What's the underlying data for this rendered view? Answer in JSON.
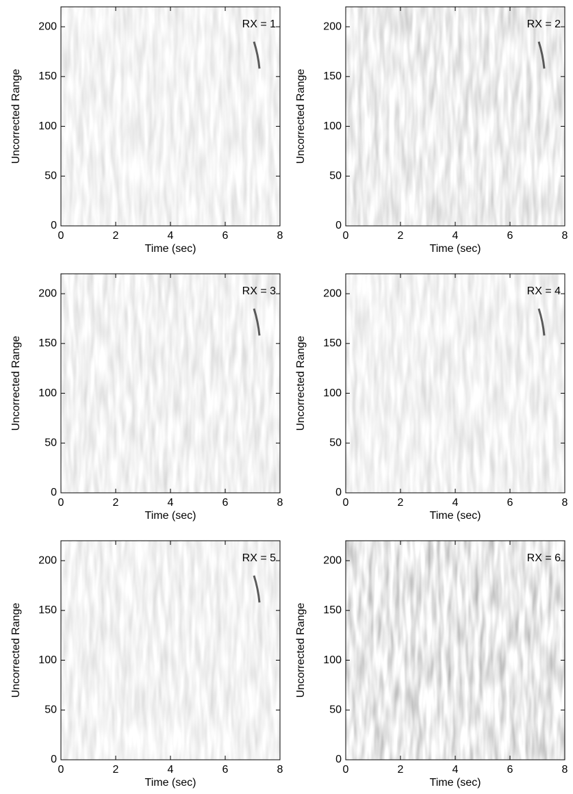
{
  "chart_data": [
    {
      "type": "heatmap",
      "label": "RX = 1",
      "xlabel": "Time (sec)",
      "ylabel": "Uncorrected Range",
      "xlim": [
        0,
        8
      ],
      "ylim": [
        0,
        220
      ],
      "xticks": [
        0,
        2,
        4,
        6,
        8
      ],
      "yticks": [
        0,
        50,
        100,
        150,
        200
      ]
    },
    {
      "type": "heatmap",
      "label": "RX = 2",
      "xlabel": "Time (sec)",
      "ylabel": "Uncorrected Range",
      "xlim": [
        0,
        8
      ],
      "ylim": [
        0,
        220
      ],
      "xticks": [
        0,
        2,
        4,
        6,
        8
      ],
      "yticks": [
        0,
        50,
        100,
        150,
        200
      ]
    },
    {
      "type": "heatmap",
      "label": "RX = 3",
      "xlabel": "Time (sec)",
      "ylabel": "Uncorrected Range",
      "xlim": [
        0,
        8
      ],
      "ylim": [
        0,
        220
      ],
      "xticks": [
        0,
        2,
        4,
        6,
        8
      ],
      "yticks": [
        0,
        50,
        100,
        150,
        200
      ]
    },
    {
      "type": "heatmap",
      "label": "RX = 4",
      "xlabel": "Time (sec)",
      "ylabel": "Uncorrected Range",
      "xlim": [
        0,
        8
      ],
      "ylim": [
        0,
        220
      ],
      "xticks": [
        0,
        2,
        4,
        6,
        8
      ],
      "yticks": [
        0,
        50,
        100,
        150,
        200
      ]
    },
    {
      "type": "heatmap",
      "label": "RX = 5",
      "xlabel": "Time (sec)",
      "ylabel": "Uncorrected Range",
      "xlim": [
        0,
        8
      ],
      "ylim": [
        0,
        220
      ],
      "xticks": [
        0,
        2,
        4,
        6,
        8
      ],
      "yticks": [
        0,
        50,
        100,
        150,
        200
      ]
    },
    {
      "type": "heatmap",
      "label": "RX = 6",
      "xlabel": "Time (sec)",
      "ylabel": "Uncorrected Range",
      "xlim": [
        0,
        8
      ],
      "ylim": [
        0,
        220
      ],
      "xticks": [
        0,
        2,
        4,
        6,
        8
      ],
      "yticks": [
        0,
        50,
        100,
        150,
        200
      ]
    }
  ]
}
